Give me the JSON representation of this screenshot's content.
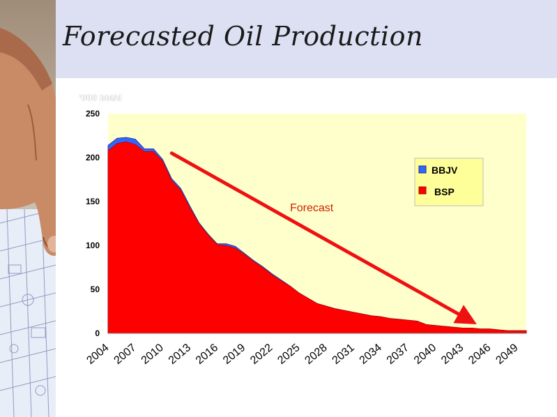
{
  "slide": {
    "title": "Forecasted Oil Production",
    "units_label": "'000 bbl/d"
  },
  "colors": {
    "plot_bg": "#ffffcc",
    "header_bg": "#dde0f2",
    "bsp": "#ff0000",
    "bbjv": "#3366ff",
    "arrow": "#ee1111",
    "legend_bg": "#ffff99"
  },
  "icons": [
    "photo-hand-blueprint"
  ],
  "chart_data": {
    "type": "area",
    "stacked": true,
    "title": "Forecasted Oil Production",
    "ylabel": "'000 bbl/d",
    "xlabel": "",
    "ylim": [
      0,
      250
    ],
    "yticks": [
      0,
      50,
      100,
      150,
      200,
      250
    ],
    "xlim": [
      2004,
      2050
    ],
    "xticks": [
      "2004",
      "2007",
      "2010",
      "2013",
      "2016",
      "2019",
      "2022",
      "2025",
      "2028",
      "2031",
      "2034",
      "2037",
      "2040",
      "2043",
      "2046",
      "2049"
    ],
    "grid": false,
    "legend_position": "top-right",
    "x": [
      2004,
      2005,
      2006,
      2007,
      2008,
      2009,
      2010,
      2011,
      2012,
      2013,
      2014,
      2015,
      2016,
      2017,
      2018,
      2019,
      2020,
      2021,
      2022,
      2023,
      2024,
      2025,
      2026,
      2027,
      2028,
      2029,
      2030,
      2031,
      2032,
      2033,
      2034,
      2035,
      2036,
      2037,
      2038,
      2039,
      2040,
      2041,
      2042,
      2043,
      2044,
      2045,
      2046,
      2047,
      2048,
      2049,
      2050
    ],
    "series": [
      {
        "name": "BSP",
        "color": "#ff0000",
        "values": [
          208,
          216,
          218,
          215,
          207,
          207,
          196,
          174,
          163,
          143,
          125,
          112,
          101,
          100,
          97,
          90,
          82,
          75,
          67,
          60,
          54,
          46,
          40,
          34,
          31,
          28,
          26,
          24,
          22,
          20,
          19,
          17,
          16,
          15,
          14,
          10,
          9,
          8,
          7,
          6,
          6,
          5,
          5,
          4,
          3,
          3,
          3
        ]
      },
      {
        "name": "BBJV",
        "color": "#3366ff",
        "values": [
          6,
          6,
          5,
          6,
          3,
          3,
          2,
          2,
          2,
          2,
          1,
          1,
          1,
          2,
          2,
          1,
          1,
          1,
          1,
          1,
          0,
          0,
          0,
          0,
          0,
          0,
          0,
          0,
          0,
          0,
          0,
          0,
          0,
          0,
          0,
          0,
          0,
          0,
          0,
          0,
          0,
          0,
          0,
          0,
          0,
          0,
          0
        ]
      }
    ],
    "annotations": [
      {
        "text": "Forecast",
        "arrow_from": [
          2011,
          205
        ],
        "arrow_to": [
          2044,
          13
        ]
      }
    ]
  }
}
